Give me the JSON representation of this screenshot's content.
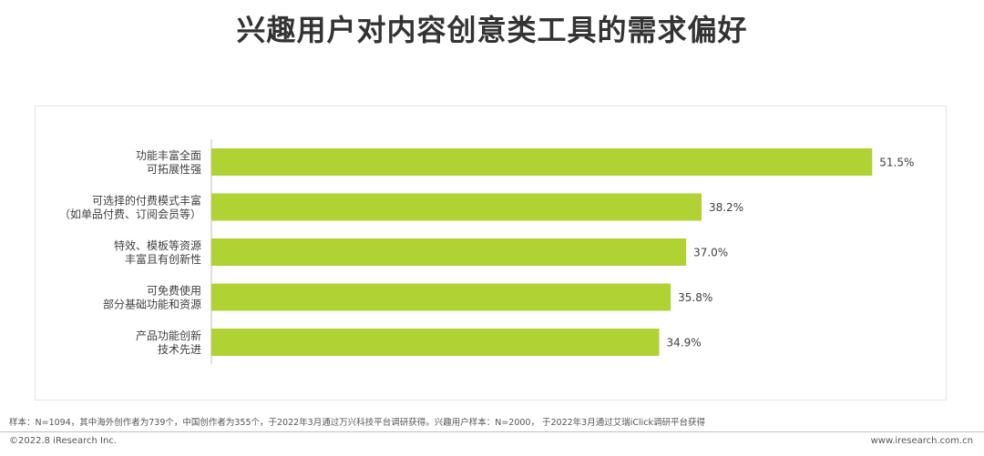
{
  "title": "兴趣用户对内容创意类工具的需求偏好",
  "chart_data": {
    "type": "bar",
    "orientation": "horizontal",
    "categories": [
      [
        "功能丰富全面",
        "可拓展性强"
      ],
      [
        "可选择的付费模式丰富",
        "（如单品付费、订阅会员等）"
      ],
      [
        "特效、模板等资源",
        "丰富且有创新性"
      ],
      [
        "可免费使用",
        "部分基础功能和资源"
      ],
      [
        "产品功能创新",
        "技术先进"
      ]
    ],
    "values": [
      51.5,
      38.2,
      37.0,
      35.8,
      34.9
    ],
    "value_labels": [
      "51.5%",
      "38.2%",
      "37.0%",
      "35.8%",
      "34.9%"
    ],
    "unit": "%",
    "color": "#b1d233",
    "xlim": [
      0,
      60
    ],
    "grid": false,
    "legend": "none"
  },
  "footnote": "样本：N=1094，其中海外创作者为739个，中国创作者为355个，于2022年3月通过万兴科技平台调研获得。兴趣用户样本：N=2000， 于2022年3月通过艾瑞iClick调研平台获得",
  "copyright": "©2022.8 iResearch Inc.",
  "website": "www.iresearch.com.cn"
}
